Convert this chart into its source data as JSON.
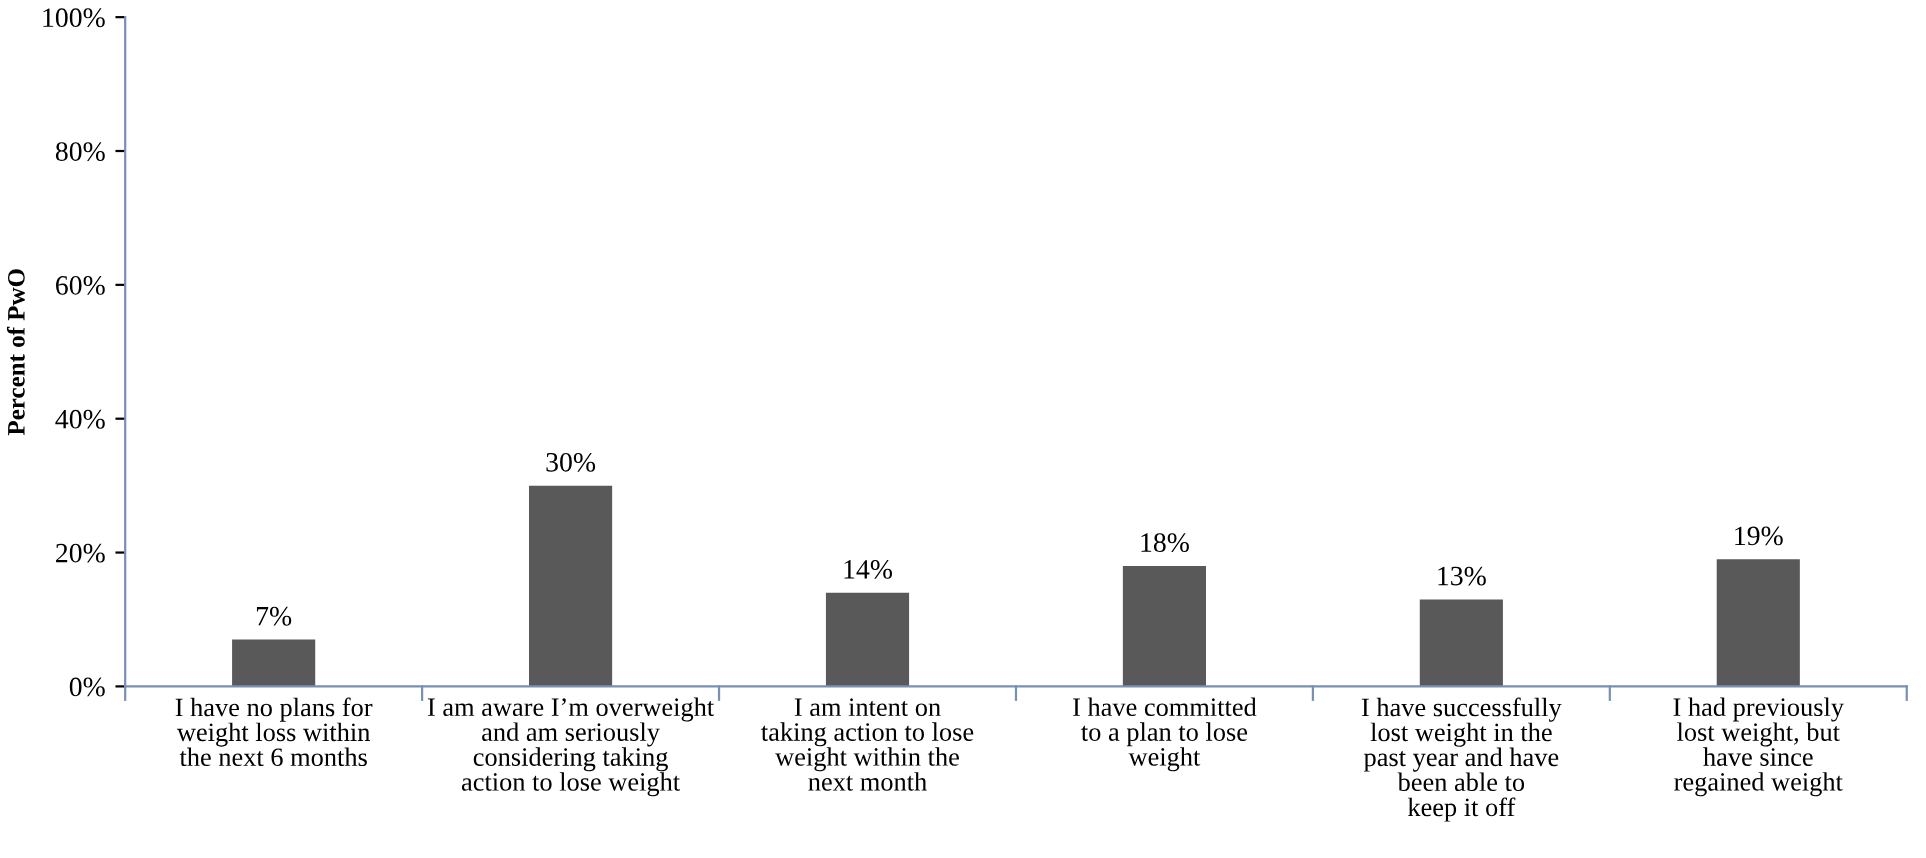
{
  "chart_data": {
    "type": "bar",
    "ylabel": "Percent of PwO",
    "categories": [
      "I have no plans for\nweight loss within\nthe next 6 months",
      "I am aware I’m overweight\nand am seriously\nconsidering taking\naction to lose weight",
      "I am intent on\ntaking action to lose\nweight within the\nnext month",
      "I have committed\nto a plan to lose\nweight",
      "I have successfully\nlost weight in the\npast year and have\nbeen able to\nkeep it off",
      "I had previously\nlost weight, but\nhave since\nregained weight"
    ],
    "values": [
      7,
      30,
      14,
      18,
      13,
      19
    ],
    "value_labels": [
      "7%",
      "30%",
      "14%",
      "18%",
      "13%",
      "19%"
    ],
    "color": "#595959",
    "ylim": [
      0,
      100
    ],
    "yticks": [
      {
        "value": 0,
        "label": "0%"
      },
      {
        "value": 20,
        "label": "20%"
      },
      {
        "value": 40,
        "label": "40%"
      },
      {
        "value": 60,
        "label": "60%"
      },
      {
        "value": 80,
        "label": "80%"
      },
      {
        "value": 100,
        "label": "100%"
      }
    ],
    "grid": false,
    "legend": false
  }
}
